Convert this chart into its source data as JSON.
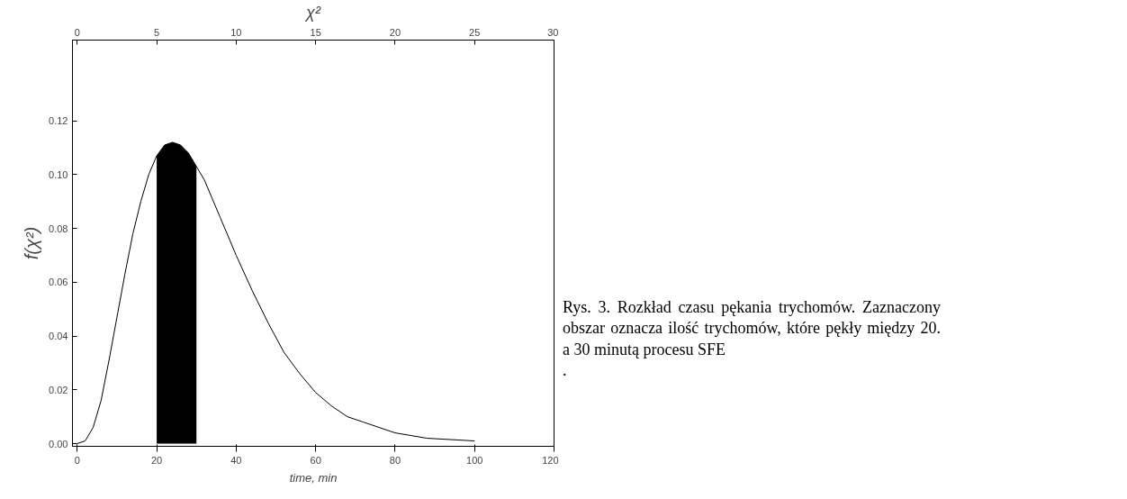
{
  "chart_data": {
    "type": "line",
    "xlabel": "time, min",
    "ylabel": "f(χ²)",
    "x2label": "χ²",
    "xlim": [
      -1.2,
      120
    ],
    "xticks": [
      0,
      20,
      40,
      60,
      80,
      100,
      120
    ],
    "x2lim": [
      -0.3,
      30
    ],
    "x2ticks": [
      0,
      5,
      10,
      15,
      20,
      25,
      30
    ],
    "ylim": [
      -0.001,
      0.15
    ],
    "yticks": [
      {
        "value": 0,
        "label": "0.00"
      },
      {
        "value": 0.02,
        "label": "0.02"
      },
      {
        "value": 0.04,
        "label": "0.04"
      },
      {
        "value": 0.06,
        "label": "0.06"
      },
      {
        "value": 0.08,
        "label": "0.08"
      },
      {
        "value": 0.1,
        "label": "0.10"
      },
      {
        "value": 0.12,
        "label": "0.12"
      }
    ],
    "grid": false,
    "marker": "none",
    "line_style": "solid",
    "series": [
      {
        "color": "#000000",
        "x": [
          0,
          2,
          4,
          6,
          8,
          10,
          12,
          14,
          16,
          18,
          20,
          22,
          24,
          26,
          28,
          30,
          32,
          36,
          40,
          44,
          48,
          52,
          56,
          60,
          64,
          68,
          72,
          80,
          88,
          100
        ],
        "values": [
          0,
          0.001,
          0.006,
          0.016,
          0.031,
          0.047,
          0.063,
          0.078,
          0.09,
          0.1,
          0.107,
          0.111,
          0.112,
          0.111,
          0.108,
          0.103,
          0.098,
          0.084,
          0.07,
          0.057,
          0.045,
          0.034,
          0.026,
          0.019,
          0.014,
          0.01,
          0.008,
          0.004,
          0.002,
          0.001
        ]
      },
      {
        "type": "area",
        "color": "#000000",
        "x": [
          20,
          22,
          24,
          26,
          28,
          30
        ],
        "values": [
          0.107,
          0.111,
          0.112,
          0.111,
          0.108,
          0.103
        ]
      }
    ],
    "annotations": [
      "Rys. 3. Rozkład czasu pękania trychomów. Zaznaczony obszar oznacza ilość trychomów, które pękły między 20. a 30 minutą procesu SFE\n."
    ]
  }
}
